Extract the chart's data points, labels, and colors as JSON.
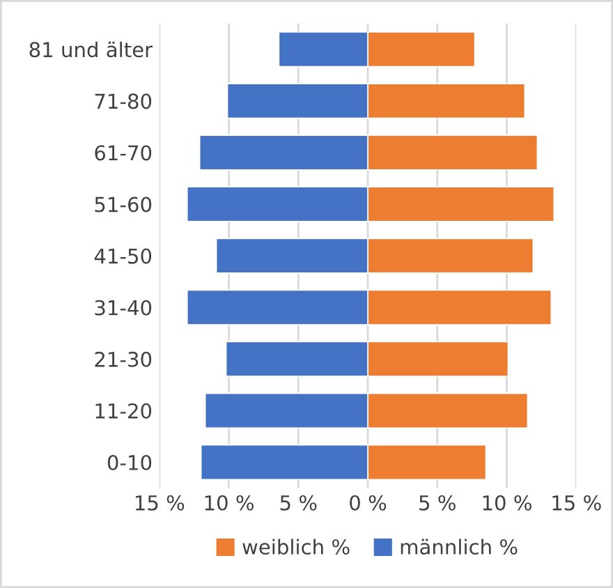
{
  "chart_data": {
    "type": "bar",
    "orientation": "horizontal",
    "categories": [
      "81 und älter",
      "71-80",
      "61-70",
      "51-60",
      "41-50",
      "31-40",
      "21-30",
      "11-20",
      "0-10"
    ],
    "series": [
      {
        "name": "weiblich %",
        "color": "#ed7d31",
        "values": [
          7.7,
          11.3,
          12.2,
          13.4,
          11.9,
          13.2,
          10.1,
          11.5,
          8.5
        ]
      },
      {
        "name": "männlich %",
        "color": "#4472c4",
        "values": [
          -6.4,
          -10.1,
          -12.1,
          -13.0,
          -10.9,
          -13.0,
          -10.2,
          -11.7,
          -12.0
        ]
      }
    ],
    "xlim": [
      -15,
      15
    ],
    "xticks": [
      {
        "value": -15,
        "label": "15 %"
      },
      {
        "value": -10,
        "label": "10 %"
      },
      {
        "value": -5,
        "label": "5 %"
      },
      {
        "value": 0,
        "label": "0 %"
      },
      {
        "value": 5,
        "label": "5 %"
      },
      {
        "value": 10,
        "label": "10 %"
      },
      {
        "value": 15,
        "label": "15 %"
      }
    ],
    "stacked": true,
    "grid": "x",
    "legend": "bottom"
  }
}
